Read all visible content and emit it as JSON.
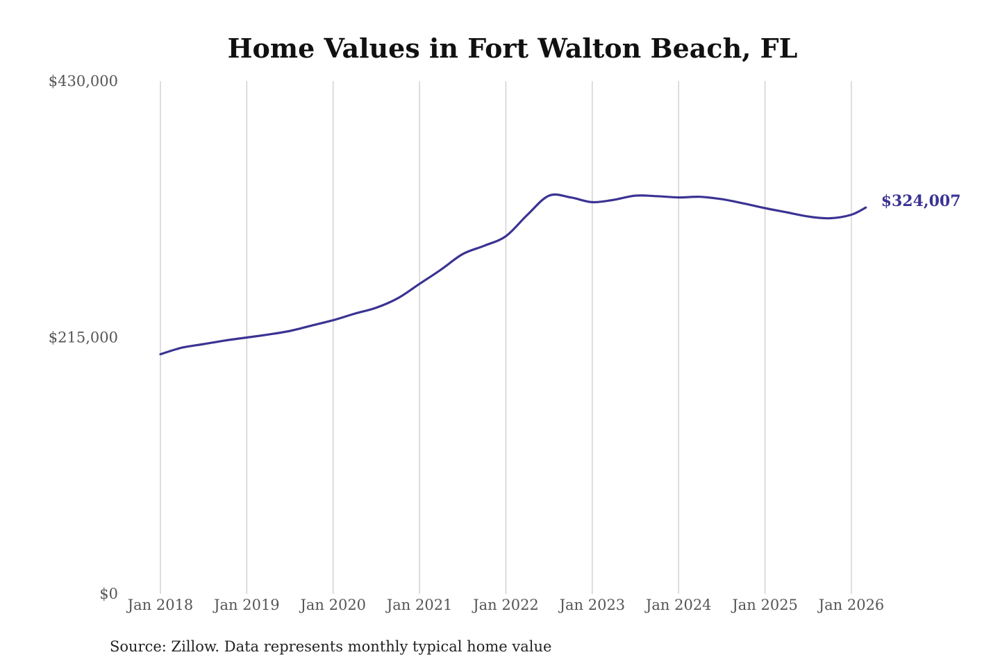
{
  "chart_data": {
    "type": "line",
    "title": "Home Values in Fort Walton Beach, FL",
    "source_note": "Source: Zillow. Data represents monthly typical home value",
    "line_color": "#3a3393",
    "ylim": [
      0,
      430000
    ],
    "y_ticks": [
      {
        "value": 0,
        "label": "$0"
      },
      {
        "value": 215000,
        "label": "$215,000"
      },
      {
        "value": 430000,
        "label": "$430,000"
      }
    ],
    "x_ticks": [
      {
        "value": "2018-01",
        "label": "Jan 2018"
      },
      {
        "value": "2019-01",
        "label": "Jan 2019"
      },
      {
        "value": "2020-01",
        "label": "Jan 2020"
      },
      {
        "value": "2021-01",
        "label": "Jan 2021"
      },
      {
        "value": "2022-01",
        "label": "Jan 2022"
      },
      {
        "value": "2023-01",
        "label": "Jan 2023"
      },
      {
        "value": "2024-01",
        "label": "Jan 2024"
      },
      {
        "value": "2025-01",
        "label": "Jan 2025"
      },
      {
        "value": "2026-01",
        "label": "Jan 2026"
      }
    ],
    "grid_x": true,
    "end_label": "$324,007",
    "series": [
      {
        "points": [
          [
            "2018-01",
            201000
          ],
          [
            "2018-04",
            206500
          ],
          [
            "2018-07",
            209500
          ],
          [
            "2018-10",
            212500
          ],
          [
            "2019-01",
            215000
          ],
          [
            "2019-04",
            217500
          ],
          [
            "2019-07",
            220500
          ],
          [
            "2019-10",
            225000
          ],
          [
            "2020-01",
            229500
          ],
          [
            "2020-04",
            235000
          ],
          [
            "2020-07",
            240000
          ],
          [
            "2020-10",
            248000
          ],
          [
            "2021-01",
            260000
          ],
          [
            "2021-04",
            272000
          ],
          [
            "2021-07",
            285000
          ],
          [
            "2021-10",
            292000
          ],
          [
            "2022-01",
            300000
          ],
          [
            "2022-04",
            318000
          ],
          [
            "2022-07",
            334000
          ],
          [
            "2022-10",
            332500
          ],
          [
            "2023-01",
            328500
          ],
          [
            "2023-04",
            330500
          ],
          [
            "2023-07",
            334000
          ],
          [
            "2023-10",
            333500
          ],
          [
            "2024-01",
            332500
          ],
          [
            "2024-04",
            333000
          ],
          [
            "2024-07",
            331000
          ],
          [
            "2024-10",
            327500
          ],
          [
            "2025-01",
            323500
          ],
          [
            "2025-04",
            320000
          ],
          [
            "2025-07",
            316500
          ],
          [
            "2025-10",
            315000
          ],
          [
            "2026-01",
            318000
          ],
          [
            "2026-03",
            324007
          ]
        ]
      }
    ]
  }
}
